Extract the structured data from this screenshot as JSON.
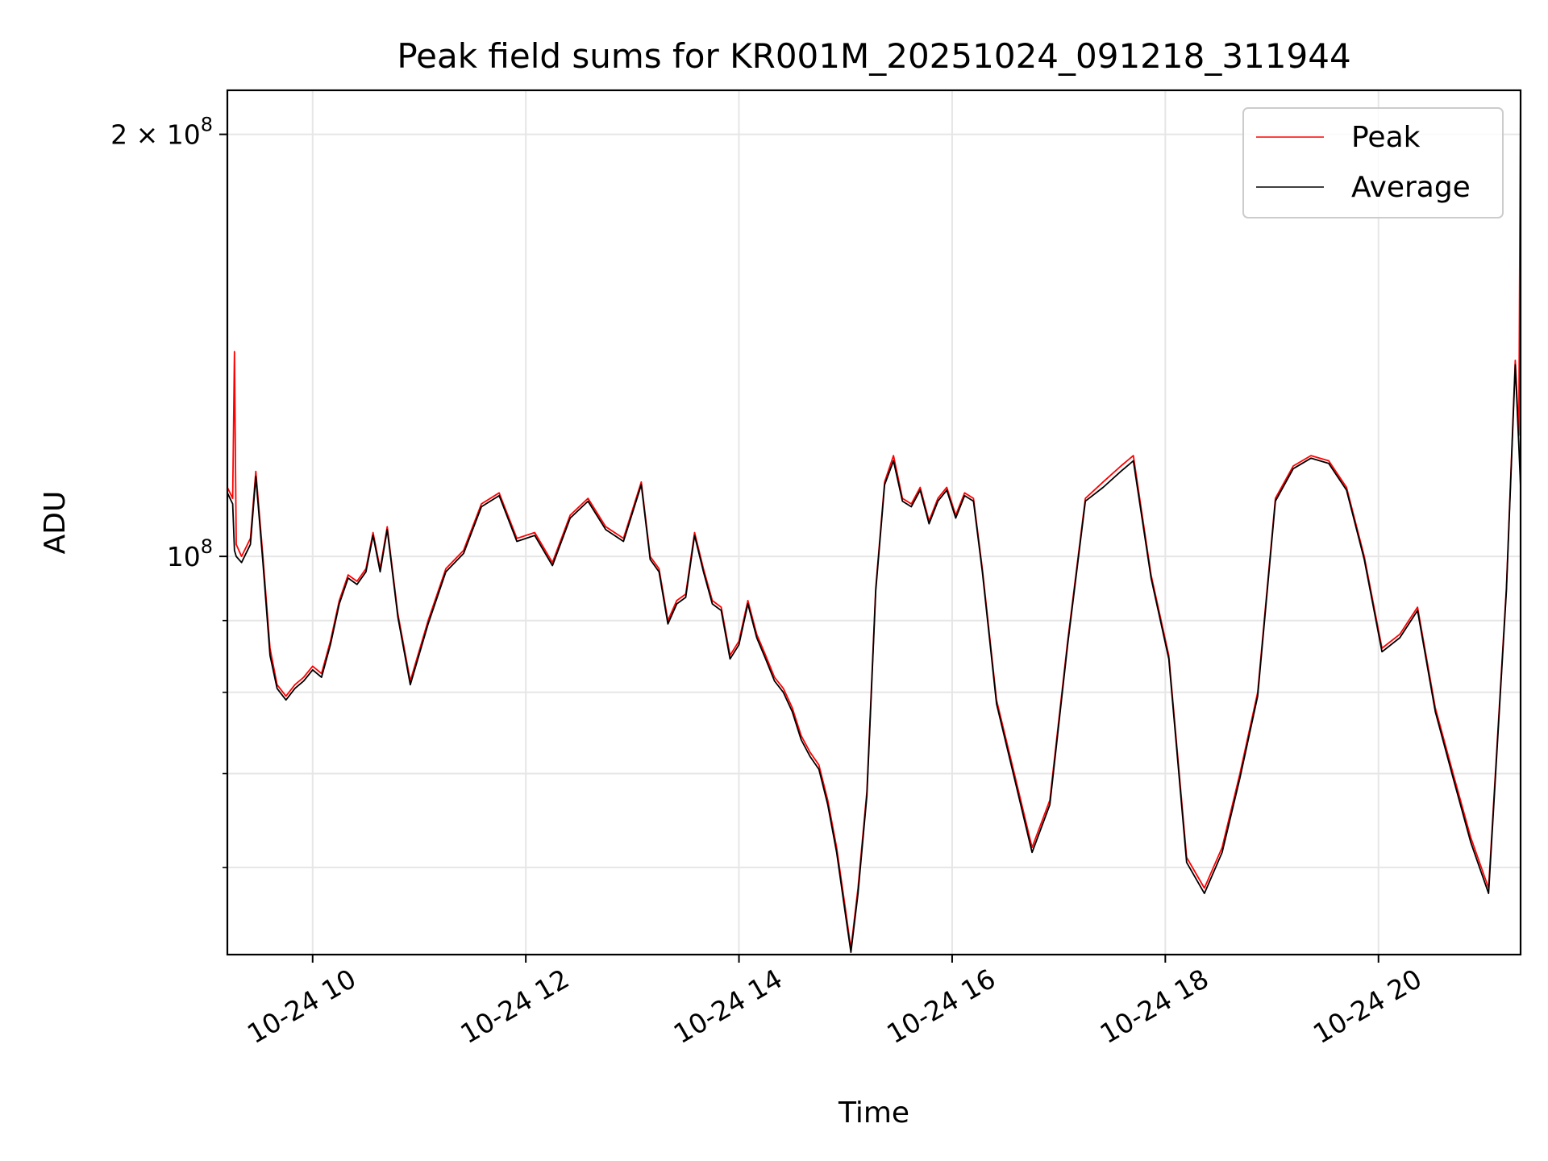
{
  "chart_data": {
    "type": "line",
    "title": "Peak field sums for KR001M_20251024_091218_311944",
    "xlabel": "Time",
    "ylabel": "ADU",
    "x_range": [
      "2025-10-24T09:12",
      "2025-10-24T21:20"
    ],
    "y_scale": "log",
    "ylim": [
      52000000,
      215000000
    ],
    "x_ticks": [
      {
        "value": "2025-10-24T10:00",
        "label": "10-24 10"
      },
      {
        "value": "2025-10-24T12:00",
        "label": "10-24 12"
      },
      {
        "value": "2025-10-24T14:00",
        "label": "10-24 14"
      },
      {
        "value": "2025-10-24T16:00",
        "label": "10-24 16"
      },
      {
        "value": "2025-10-24T18:00",
        "label": "10-24 18"
      },
      {
        "value": "2025-10-24T20:00",
        "label": "10-24 20"
      }
    ],
    "y_ticks": [
      {
        "value": 200000000,
        "base": "2 × 10",
        "exp": "8"
      },
      {
        "value": 100000000,
        "base": "10",
        "exp": "8"
      }
    ],
    "y_minor_gridlines": [
      90000000,
      80000000,
      70000000,
      60000000
    ],
    "grid": true,
    "legend": "top-right",
    "series": [
      {
        "name": "Peak",
        "color": "#ff0000",
        "points": [
          [
            "2025-10-24T09:12",
            112000000
          ],
          [
            "2025-10-24T09:15",
            110000000
          ],
          [
            "2025-10-24T09:16",
            140000000
          ],
          [
            "2025-10-24T09:17",
            102000000
          ],
          [
            "2025-10-24T09:20",
            100000000
          ],
          [
            "2025-10-24T09:25",
            103000000
          ],
          [
            "2025-10-24T09:28",
            115000000
          ],
          [
            "2025-10-24T09:32",
            100000000
          ],
          [
            "2025-10-24T09:36",
            86000000
          ],
          [
            "2025-10-24T09:40",
            81000000
          ],
          [
            "2025-10-24T09:45",
            79500000
          ],
          [
            "2025-10-24T09:50",
            81000000
          ],
          [
            "2025-10-24T09:55",
            82000000
          ],
          [
            "2025-10-24T10:00",
            83500000
          ],
          [
            "2025-10-24T10:05",
            82500000
          ],
          [
            "2025-10-24T10:10",
            87000000
          ],
          [
            "2025-10-24T10:15",
            93000000
          ],
          [
            "2025-10-24T10:20",
            97000000
          ],
          [
            "2025-10-24T10:25",
            96000000
          ],
          [
            "2025-10-24T10:30",
            98000000
          ],
          [
            "2025-10-24T10:34",
            104000000
          ],
          [
            "2025-10-24T10:38",
            98000000
          ],
          [
            "2025-10-24T10:42",
            105000000
          ],
          [
            "2025-10-24T10:48",
            91000000
          ],
          [
            "2025-10-24T10:55",
            81500000
          ],
          [
            "2025-10-24T11:05",
            90000000
          ],
          [
            "2025-10-24T11:15",
            98000000
          ],
          [
            "2025-10-24T11:25",
            101000000
          ],
          [
            "2025-10-24T11:35",
            109000000
          ],
          [
            "2025-10-24T11:45",
            111000000
          ],
          [
            "2025-10-24T11:55",
            103000000
          ],
          [
            "2025-10-24T12:05",
            104000000
          ],
          [
            "2025-10-24T12:15",
            99000000
          ],
          [
            "2025-10-24T12:25",
            107000000
          ],
          [
            "2025-10-24T12:35",
            110000000
          ],
          [
            "2025-10-24T12:45",
            105000000
          ],
          [
            "2025-10-24T12:55",
            103000000
          ],
          [
            "2025-10-24T13:05",
            113000000
          ],
          [
            "2025-10-24T13:10",
            100000000
          ],
          [
            "2025-10-24T13:15",
            98000000
          ],
          [
            "2025-10-24T13:20",
            90000000
          ],
          [
            "2025-10-24T13:25",
            93000000
          ],
          [
            "2025-10-24T13:30",
            94000000
          ],
          [
            "2025-10-24T13:35",
            104000000
          ],
          [
            "2025-10-24T13:40",
            98000000
          ],
          [
            "2025-10-24T13:45",
            93000000
          ],
          [
            "2025-10-24T13:50",
            92000000
          ],
          [
            "2025-10-24T13:55",
            85000000
          ],
          [
            "2025-10-24T14:00",
            87000000
          ],
          [
            "2025-10-24T14:05",
            93000000
          ],
          [
            "2025-10-24T14:10",
            88000000
          ],
          [
            "2025-10-24T14:15",
            85000000
          ],
          [
            "2025-10-24T14:20",
            82000000
          ],
          [
            "2025-10-24T14:25",
            80500000
          ],
          [
            "2025-10-24T14:30",
            78000000
          ],
          [
            "2025-10-24T14:35",
            74500000
          ],
          [
            "2025-10-24T14:40",
            72500000
          ],
          [
            "2025-10-24T14:45",
            71000000
          ],
          [
            "2025-10-24T14:50",
            67000000
          ],
          [
            "2025-10-24T14:55",
            62000000
          ],
          [
            "2025-10-24T15:00",
            56000000
          ],
          [
            "2025-10-24T15:03",
            52500000
          ],
          [
            "2025-10-24T15:07",
            58000000
          ],
          [
            "2025-10-24T15:12",
            68000000
          ],
          [
            "2025-10-24T15:17",
            95000000
          ],
          [
            "2025-10-24T15:22",
            113000000
          ],
          [
            "2025-10-24T15:27",
            118000000
          ],
          [
            "2025-10-24T15:32",
            110000000
          ],
          [
            "2025-10-24T15:37",
            109000000
          ],
          [
            "2025-10-24T15:42",
            112000000
          ],
          [
            "2025-10-24T15:47",
            106000000
          ],
          [
            "2025-10-24T15:52",
            110000000
          ],
          [
            "2025-10-24T15:57",
            112000000
          ],
          [
            "2025-10-24T16:02",
            107000000
          ],
          [
            "2025-10-24T16:07",
            111000000
          ],
          [
            "2025-10-24T16:12",
            110000000
          ],
          [
            "2025-10-24T16:17",
            98000000
          ],
          [
            "2025-10-24T16:25",
            79000000
          ],
          [
            "2025-10-24T16:35",
            70000000
          ],
          [
            "2025-10-24T16:45",
            62000000
          ],
          [
            "2025-10-24T16:55",
            67000000
          ],
          [
            "2025-10-24T17:05",
            87000000
          ],
          [
            "2025-10-24T17:15",
            110000000
          ],
          [
            "2025-10-24T17:25",
            113000000
          ],
          [
            "2025-10-24T17:35",
            116000000
          ],
          [
            "2025-10-24T17:42",
            118000000
          ],
          [
            "2025-10-24T17:52",
            97000000
          ],
          [
            "2025-10-24T18:02",
            85000000
          ],
          [
            "2025-10-24T18:12",
            61000000
          ],
          [
            "2025-10-24T18:22",
            58000000
          ],
          [
            "2025-10-24T18:32",
            62000000
          ],
          [
            "2025-10-24T18:42",
            70000000
          ],
          [
            "2025-10-24T18:52",
            80000000
          ],
          [
            "2025-10-24T19:02",
            110000000
          ],
          [
            "2025-10-24T19:12",
            116000000
          ],
          [
            "2025-10-24T19:22",
            118000000
          ],
          [
            "2025-10-24T19:32",
            117000000
          ],
          [
            "2025-10-24T19:42",
            112000000
          ],
          [
            "2025-10-24T19:52",
            100000000
          ],
          [
            "2025-10-24T20:02",
            86000000
          ],
          [
            "2025-10-24T20:12",
            88000000
          ],
          [
            "2025-10-24T20:22",
            92000000
          ],
          [
            "2025-10-24T20:32",
            78000000
          ],
          [
            "2025-10-24T20:42",
            70000000
          ],
          [
            "2025-10-24T20:52",
            63000000
          ],
          [
            "2025-10-24T21:02",
            58000000
          ],
          [
            "2025-10-24T21:12",
            95000000
          ],
          [
            "2025-10-24T21:17",
            138000000
          ],
          [
            "2025-10-24T21:19",
            122000000
          ],
          [
            "2025-10-24T21:20",
            215000000
          ]
        ]
      },
      {
        "name": "Average",
        "color": "#000000",
        "points": [
          [
            "2025-10-24T09:12",
            111000000
          ],
          [
            "2025-10-24T09:15",
            109000000
          ],
          [
            "2025-10-24T09:16",
            101000000
          ],
          [
            "2025-10-24T09:17",
            100000000
          ],
          [
            "2025-10-24T09:20",
            99000000
          ],
          [
            "2025-10-24T09:25",
            102000000
          ],
          [
            "2025-10-24T09:28",
            114000000
          ],
          [
            "2025-10-24T09:32",
            99000000
          ],
          [
            "2025-10-24T09:36",
            85000000
          ],
          [
            "2025-10-24T09:40",
            80500000
          ],
          [
            "2025-10-24T09:45",
            79000000
          ],
          [
            "2025-10-24T09:50",
            80500000
          ],
          [
            "2025-10-24T09:55",
            81500000
          ],
          [
            "2025-10-24T10:00",
            83000000
          ],
          [
            "2025-10-24T10:05",
            82000000
          ],
          [
            "2025-10-24T10:10",
            86500000
          ],
          [
            "2025-10-24T10:15",
            92500000
          ],
          [
            "2025-10-24T10:20",
            96500000
          ],
          [
            "2025-10-24T10:25",
            95500000
          ],
          [
            "2025-10-24T10:30",
            97500000
          ],
          [
            "2025-10-24T10:34",
            103500000
          ],
          [
            "2025-10-24T10:38",
            97500000
          ],
          [
            "2025-10-24T10:42",
            104500000
          ],
          [
            "2025-10-24T10:48",
            90500000
          ],
          [
            "2025-10-24T10:55",
            81000000
          ],
          [
            "2025-10-24T11:05",
            89500000
          ],
          [
            "2025-10-24T11:15",
            97500000
          ],
          [
            "2025-10-24T11:25",
            100500000
          ],
          [
            "2025-10-24T11:35",
            108500000
          ],
          [
            "2025-10-24T11:45",
            110500000
          ],
          [
            "2025-10-24T11:55",
            102500000
          ],
          [
            "2025-10-24T12:05",
            103500000
          ],
          [
            "2025-10-24T12:15",
            98500000
          ],
          [
            "2025-10-24T12:25",
            106500000
          ],
          [
            "2025-10-24T12:35",
            109500000
          ],
          [
            "2025-10-24T12:45",
            104500000
          ],
          [
            "2025-10-24T12:55",
            102500000
          ],
          [
            "2025-10-24T13:05",
            112500000
          ],
          [
            "2025-10-24T13:10",
            99500000
          ],
          [
            "2025-10-24T13:15",
            97500000
          ],
          [
            "2025-10-24T13:20",
            89500000
          ],
          [
            "2025-10-24T13:25",
            92500000
          ],
          [
            "2025-10-24T13:30",
            93500000
          ],
          [
            "2025-10-24T13:35",
            103500000
          ],
          [
            "2025-10-24T13:40",
            97500000
          ],
          [
            "2025-10-24T13:45",
            92500000
          ],
          [
            "2025-10-24T13:50",
            91500000
          ],
          [
            "2025-10-24T13:55",
            84500000
          ],
          [
            "2025-10-24T14:00",
            86500000
          ],
          [
            "2025-10-24T14:05",
            92500000
          ],
          [
            "2025-10-24T14:10",
            87500000
          ],
          [
            "2025-10-24T14:15",
            84500000
          ],
          [
            "2025-10-24T14:20",
            81500000
          ],
          [
            "2025-10-24T14:25",
            80000000
          ],
          [
            "2025-10-24T14:30",
            77500000
          ],
          [
            "2025-10-24T14:35",
            74000000
          ],
          [
            "2025-10-24T14:40",
            72000000
          ],
          [
            "2025-10-24T14:45",
            70500000
          ],
          [
            "2025-10-24T14:50",
            66500000
          ],
          [
            "2025-10-24T14:55",
            61500000
          ],
          [
            "2025-10-24T15:00",
            55500000
          ],
          [
            "2025-10-24T15:03",
            52200000
          ],
          [
            "2025-10-24T15:07",
            57500000
          ],
          [
            "2025-10-24T15:12",
            67500000
          ],
          [
            "2025-10-24T15:17",
            94500000
          ],
          [
            "2025-10-24T15:22",
            112500000
          ],
          [
            "2025-10-24T15:27",
            117000000
          ],
          [
            "2025-10-24T15:32",
            109500000
          ],
          [
            "2025-10-24T15:37",
            108500000
          ],
          [
            "2025-10-24T15:42",
            111500000
          ],
          [
            "2025-10-24T15:47",
            105500000
          ],
          [
            "2025-10-24T15:52",
            109500000
          ],
          [
            "2025-10-24T15:57",
            111500000
          ],
          [
            "2025-10-24T16:02",
            106500000
          ],
          [
            "2025-10-24T16:07",
            110500000
          ],
          [
            "2025-10-24T16:12",
            109500000
          ],
          [
            "2025-10-24T16:17",
            97500000
          ],
          [
            "2025-10-24T16:25",
            78500000
          ],
          [
            "2025-10-24T16:35",
            69500000
          ],
          [
            "2025-10-24T16:45",
            61500000
          ],
          [
            "2025-10-24T16:55",
            66500000
          ],
          [
            "2025-10-24T17:05",
            86500000
          ],
          [
            "2025-10-24T17:15",
            109500000
          ],
          [
            "2025-10-24T17:25",
            112000000
          ],
          [
            "2025-10-24T17:35",
            115000000
          ],
          [
            "2025-10-24T17:42",
            117000000
          ],
          [
            "2025-10-24T17:52",
            96500000
          ],
          [
            "2025-10-24T18:02",
            84500000
          ],
          [
            "2025-10-24T18:12",
            60500000
          ],
          [
            "2025-10-24T18:22",
            57500000
          ],
          [
            "2025-10-24T18:32",
            61500000
          ],
          [
            "2025-10-24T18:42",
            69500000
          ],
          [
            "2025-10-24T18:52",
            79500000
          ],
          [
            "2025-10-24T19:02",
            109500000
          ],
          [
            "2025-10-24T19:12",
            115500000
          ],
          [
            "2025-10-24T19:22",
            117500000
          ],
          [
            "2025-10-24T19:32",
            116500000
          ],
          [
            "2025-10-24T19:42",
            111500000
          ],
          [
            "2025-10-24T19:52",
            99500000
          ],
          [
            "2025-10-24T20:02",
            85500000
          ],
          [
            "2025-10-24T20:12",
            87500000
          ],
          [
            "2025-10-24T20:22",
            91500000
          ],
          [
            "2025-10-24T20:32",
            77500000
          ],
          [
            "2025-10-24T20:42",
            69500000
          ],
          [
            "2025-10-24T20:52",
            62500000
          ],
          [
            "2025-10-24T21:02",
            57500000
          ],
          [
            "2025-10-24T21:12",
            94500000
          ],
          [
            "2025-10-24T21:17",
            137000000
          ],
          [
            "2025-10-24T21:19",
            120000000
          ],
          [
            "2025-10-24T21:20",
            112000000
          ]
        ]
      }
    ]
  }
}
